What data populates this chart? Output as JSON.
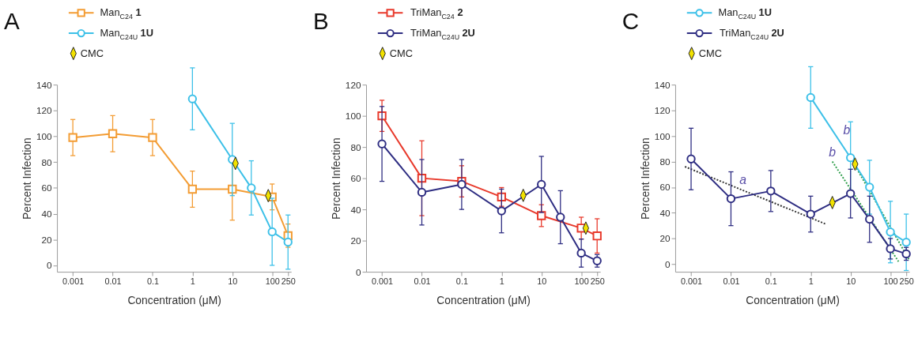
{
  "chart_data": [
    {
      "type": "line",
      "title": "A",
      "xlabel": "Concentration (μM)",
      "ylabel": "Percent Infection",
      "log": "x",
      "legend": "top left",
      "xlim": [
        0.0004,
        300
      ],
      "xticks": [
        0.001,
        0.01,
        0.1,
        1,
        10,
        100,
        250
      ],
      "ylim": [
        -5,
        140
      ],
      "yticks": [
        0,
        20,
        40,
        60,
        80,
        100,
        120,
        140
      ],
      "series": [
        {
          "name": "Man$_{C24}$ 1",
          "marker": "square",
          "color": "#f39c33",
          "x": [
            0.001,
            0.01,
            0.1,
            1,
            10,
            100,
            250
          ],
          "values": [
            99,
            102,
            99,
            59,
            59,
            53,
            23
          ],
          "errors": [
            14,
            14,
            14,
            14,
            24,
            10,
            9
          ]
        },
        {
          "name": "Man$_{C24U}$ 1U",
          "marker": "circle",
          "color": "#3cc0e8",
          "x": [
            1,
            10,
            30,
            100,
            250
          ],
          "values": [
            129,
            82,
            60,
            26,
            18
          ],
          "errors": [
            24,
            28,
            21,
            26,
            21
          ]
        },
        {
          "name": "CMC",
          "type": "scatter",
          "marker": "diamond",
          "color": "#f2e200",
          "x": [
            12,
            80
          ],
          "values": [
            79,
            54
          ]
        }
      ]
    },
    {
      "type": "line",
      "title": "B",
      "xlabel": "Concentration (μM)",
      "ylabel": "Percent Infection",
      "log": "x",
      "legend": "top left",
      "xlim": [
        0.0004,
        300
      ],
      "xticks": [
        0.001,
        0.01,
        0.1,
        1,
        10,
        100,
        250
      ],
      "ylim": [
        0,
        120
      ],
      "yticks": [
        0,
        20,
        40,
        60,
        80,
        100,
        120
      ],
      "series": [
        {
          "name": "TriMan$_{C24}$ 2",
          "marker": "square",
          "color": "#e8392b",
          "x": [
            0.001,
            0.01,
            0.1,
            1,
            10,
            100,
            250
          ],
          "values": [
            100,
            60,
            58,
            48,
            36,
            28,
            23
          ],
          "errors": [
            10,
            24,
            10,
            6,
            7,
            7,
            11
          ]
        },
        {
          "name": "TriMan$_{C24U}$ 2U",
          "marker": "circle",
          "color": "#2e2d82",
          "x": [
            0.001,
            0.01,
            0.1,
            1,
            10,
            30,
            100,
            250
          ],
          "values": [
            82,
            51,
            56,
            39,
            56,
            35,
            12,
            7
          ],
          "errors": [
            24,
            21,
            16,
            14,
            18,
            17,
            9,
            4
          ]
        },
        {
          "name": "CMC",
          "type": "scatter",
          "marker": "diamond",
          "color": "#f2e200",
          "x": [
            3.5,
            130
          ],
          "values": [
            49,
            28
          ]
        }
      ]
    },
    {
      "type": "line",
      "title": "C",
      "xlabel": "Concentration (μM)",
      "ylabel": "Percent Infection",
      "log": "x",
      "legend": "top left",
      "xlim": [
        0.0004,
        300
      ],
      "xticks": [
        0.001,
        0.01,
        0.1,
        1,
        10,
        100,
        250
      ],
      "ylim": [
        -6,
        140
      ],
      "yticks": [
        0,
        20,
        40,
        60,
        80,
        100,
        120,
        140
      ],
      "annotations": [
        {
          "text": "a",
          "x": 0.02,
          "y": 58
        },
        {
          "text": "b",
          "x": 8,
          "y": 97
        },
        {
          "text": "b",
          "x": 3.5,
          "y": 80
        }
      ],
      "series": [
        {
          "type": "line",
          "marker": "none",
          "line_style": "dotted",
          "color": "#333333",
          "x": [
            0.0007,
            2.5
          ],
          "values": [
            76,
            31
          ]
        },
        {
          "type": "line",
          "marker": "none",
          "line_style": "dotted",
          "color": "#2e9e4a",
          "x": [
            3.5,
            160
          ],
          "values": [
            80,
            2
          ]
        },
        {
          "type": "line",
          "marker": "none",
          "line_style": "dotted",
          "color": "#2e9e4a",
          "x": [
            10,
            300
          ],
          "values": [
            83,
            3
          ]
        },
        {
          "name": "Man$_{C24U}$ 1U",
          "marker": "circle",
          "color": "#3cc0e8",
          "x": [
            1,
            10,
            30,
            100,
            250
          ],
          "values": [
            130,
            83,
            60,
            25,
            17
          ],
          "errors": [
            24,
            28,
            21,
            24,
            22
          ]
        },
        {
          "name": "TriMan$_{C24U}$ 2U",
          "marker": "circle",
          "color": "#2e2d82",
          "x": [
            0.001,
            0.01,
            0.1,
            1,
            10,
            30,
            100,
            250
          ],
          "values": [
            82,
            51,
            57,
            39,
            55,
            35,
            12,
            8
          ],
          "errors": [
            24,
            21,
            16,
            14,
            19,
            18,
            8,
            5
          ]
        },
        {
          "name": "CMC",
          "type": "scatter",
          "marker": "diamond",
          "color": "#f2e200",
          "x": [
            3.5,
            13
          ],
          "values": [
            48,
            78
          ]
        }
      ]
    }
  ]
}
